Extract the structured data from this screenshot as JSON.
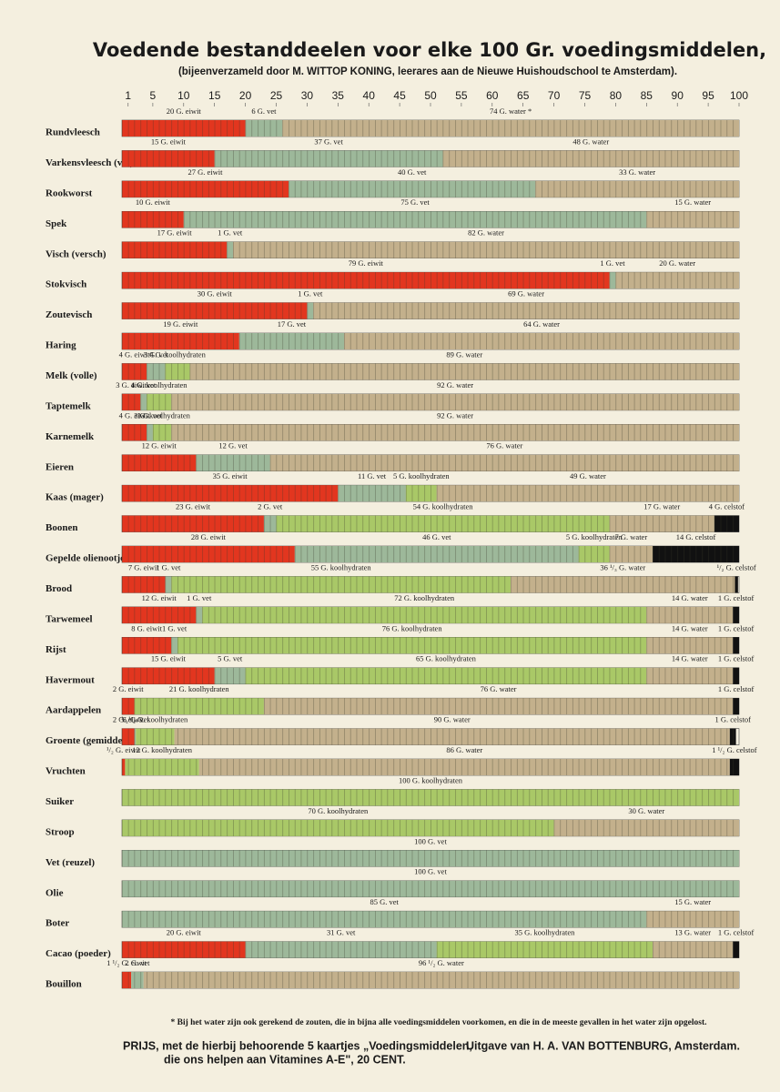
{
  "chart_data": {
    "type": "bar",
    "orientation": "horizontal",
    "stacked": true,
    "title": "Voedende bestanddeelen voor elke 100 Gr. voedingsmiddelen,",
    "subtitle": "(bijeenverzameld door M. WITTOP KONING, leerares aan de Nieuwe Huishoudschool te Amsterdam).",
    "xlim": [
      0,
      100
    ],
    "xticks": [
      1,
      5,
      10,
      15,
      20,
      25,
      30,
      35,
      40,
      45,
      50,
      55,
      60,
      65,
      70,
      75,
      80,
      85,
      90,
      95,
      100
    ],
    "categories": [
      "Rundvleesch",
      "Varkensvleesch (vet)",
      "Rookworst",
      "Spek",
      "Visch (versch)",
      "Stokvisch",
      "Zoutevisch",
      "Haring",
      "Melk (volle)",
      "Taptemelk",
      "Karnemelk",
      "Eieren",
      "Kaas (mager)",
      "Boonen",
      "Gepelde olienootjes",
      "Brood",
      "Tarwemeel",
      "Rijst",
      "Havermout",
      "Aardappelen",
      "Groente (gemiddeld)",
      "Vruchten",
      "Suiker",
      "Stroop",
      "Vet (reuzel)",
      "Olie",
      "Boter",
      "Cacao (poeder)",
      "Bouillon"
    ],
    "series": [
      {
        "color": "#e2361f",
        "values": [
          20,
          15,
          27,
          10,
          17,
          79,
          30,
          19,
          4,
          3,
          4,
          12,
          35,
          23,
          28,
          7,
          12,
          8,
          15,
          2,
          2,
          0.5,
          null,
          null,
          null,
          null,
          null,
          20,
          1.5
        ],
        "value_labels": [
          "20 G. eiwit",
          "15 G. eiwit",
          "27 G. eiwit",
          "10 G. eiwit",
          "17 G. eiwit",
          "79 G. eiwit",
          "30 G. eiwit",
          "19 G. eiwit",
          "4 G. eiwit",
          "3 G. eiwit",
          "4 G. eiwit",
          "12 G. eiwit",
          "35 G. eiwit",
          "23 G. eiwit",
          "28 G. eiwit",
          "7 G. eiwit",
          "12 G. eiwit",
          "8 G. eiwit",
          "15 G. eiwit",
          "2 G. eiwit",
          "2 G. eiwit",
          "¹/₂ G. eiwit",
          null,
          null,
          null,
          null,
          null,
          "20 G. eiwit",
          "1 ¹/₂ G. eiwit"
        ]
      },
      {
        "color": "#9db89a",
        "values": [
          6,
          37,
          40,
          75,
          1,
          1,
          1,
          17,
          3,
          1,
          1,
          12,
          11,
          2,
          46,
          1,
          1,
          1,
          5,
          null,
          0.25,
          null,
          null,
          null,
          100,
          100,
          85,
          31,
          2
        ],
        "value_labels": [
          "6 G. vet",
          "37 G. vet",
          "40 G. vet",
          "75 G. vet",
          "1 G. vet",
          "1 G. vet",
          "1 G. vet",
          "17 G. vet",
          "3 G. vet",
          "1 G. vet",
          "1 G. vet",
          "12 G. vet",
          "11 G. vet",
          "2 G. vet",
          "46 G. vet",
          "1 G. vet",
          "1 G. vet",
          "1 G. vet",
          "5 G. vet",
          null,
          "¹/₄ G. vet",
          null,
          null,
          null,
          "100 G. vet",
          "100 G. vet",
          "85 G. vet",
          "31 G. vet",
          "2 G. vet"
        ]
      },
      {
        "color": "#a9c867",
        "values": [
          null,
          null,
          null,
          null,
          null,
          null,
          null,
          null,
          4,
          4,
          3,
          null,
          5,
          54,
          5,
          55,
          72,
          76,
          65,
          21,
          6.25,
          12,
          100,
          70,
          null,
          null,
          null,
          35,
          null
        ],
        "value_labels": [
          null,
          null,
          null,
          null,
          null,
          null,
          null,
          null,
          "4 G. koolhydraten",
          "4 G. koolhydraten",
          "3 G. koolhydraten",
          null,
          "5 G. koolhydraten",
          "54 G. koolhydraten",
          "5 G. koolhydraten",
          "55 G. koolhydraten",
          "72 G. koolhydraten",
          "76 G. koolhydraten",
          "65 G. koolhydraten",
          "21 G. koolhydraten",
          "6 ¹/₄ G. koolhydraten",
          "12 G. koolhydraten",
          "100 G. koolhydraten",
          "70 G. koolhydraten",
          null,
          null,
          null,
          "35 G. koolhydraten",
          null
        ]
      },
      {
        "color": "#c3b08c",
        "values": [
          74,
          48,
          33,
          15,
          82,
          20,
          69,
          64,
          89,
          92,
          92,
          76,
          49,
          17,
          7,
          36.33,
          14,
          14,
          14,
          76,
          90,
          86,
          null,
          30,
          null,
          null,
          15,
          13,
          96.5
        ],
        "value_labels": [
          "74 G. water *",
          "48 G. water",
          "33 G. water",
          "15 G. water",
          "82 G. water",
          "20 G. water",
          "69 G. water",
          "64 G. water",
          "89 G. water",
          "92 G. water",
          "92 G. water",
          "76 G. water",
          "49 G. water",
          "17 G. water",
          "7 G. water",
          "36 ¹/₃ G. water",
          "14 G. water",
          "14 G. water",
          "14 G. water",
          "76 G. water",
          "90 G. water",
          "86 G. water",
          null,
          "30 G. water",
          null,
          null,
          "15 G. water",
          "13 G. water",
          "96 ¹/₂ G. water"
        ]
      },
      {
        "color": "#111111",
        "values": [
          null,
          null,
          null,
          null,
          null,
          null,
          null,
          null,
          null,
          null,
          null,
          null,
          null,
          4,
          14,
          0.5,
          1,
          1,
          1,
          1,
          1,
          1.5,
          null,
          null,
          null,
          null,
          null,
          1,
          null
        ],
        "value_labels": [
          null,
          null,
          null,
          null,
          null,
          null,
          null,
          null,
          null,
          null,
          null,
          null,
          null,
          "4 G. celstof",
          "14 G. celstof",
          "¹/₂ G. celstof",
          "1 G. celstof",
          "1 G. celstof",
          "1 G. celstof",
          "1 G. celstof",
          "1 G. celstof",
          "1 ¹/₂ G. celstof",
          null,
          null,
          null,
          null,
          null,
          "1 G. celstof",
          null
        ]
      }
    ],
    "note": "* Bij het water zijn ook gerekend de zouten, die in bijna alle voedingsmiddelen voorkomen, en die in de meeste gevallen in het water zijn opgelost.",
    "footer": [
      "PRIJS, met de hierbij behoorende 5 kaartjes „Voedingsmiddelen,",
      "die ons helpen aan Vitamines A-E\", 20 CENT.",
      "Uitgave van H. A. VAN BOTTENBURG, Amsterdam."
    ]
  }
}
